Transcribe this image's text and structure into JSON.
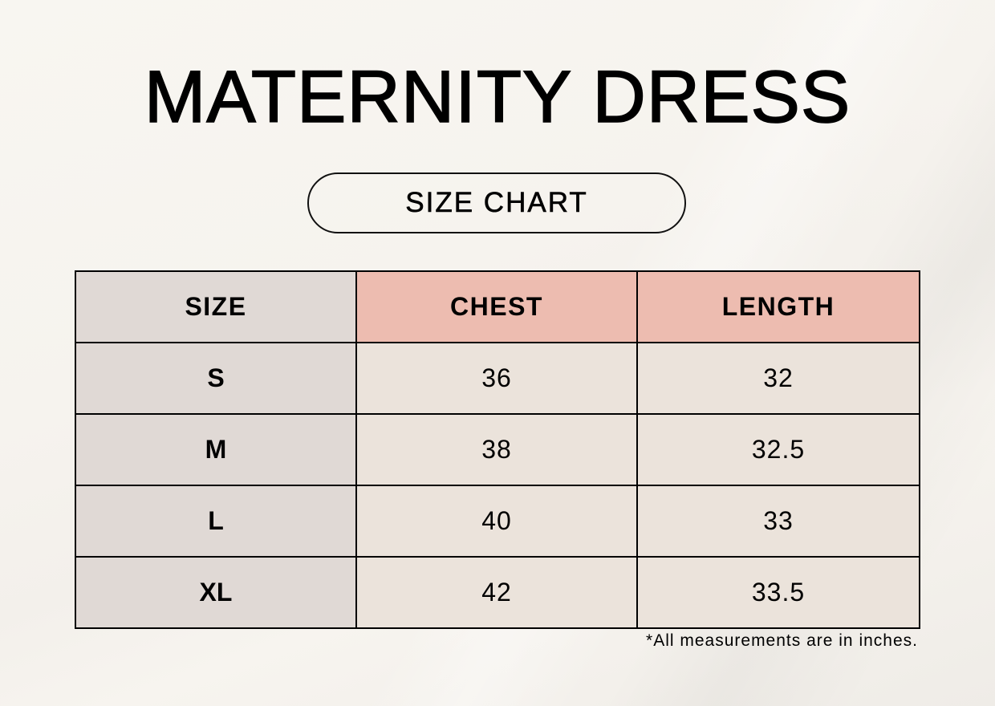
{
  "title": "MATERNITY DRESS",
  "subtitle": "SIZE CHART",
  "table": {
    "headers": [
      "SIZE",
      "CHEST",
      "LENGTH"
    ],
    "rows": [
      {
        "size": "S",
        "chest": "36",
        "length": "32"
      },
      {
        "size": "M",
        "chest": "38",
        "length": "32.5"
      },
      {
        "size": "L",
        "chest": "40",
        "length": "33"
      },
      {
        "size": "XL",
        "chest": "42",
        "length": "33.5"
      }
    ]
  },
  "footnote": "*All measurements are in inches.",
  "colors": {
    "size_column": "#e0d9d5",
    "header_accent": "#edbcb0",
    "value_cells": "#ebe3db",
    "background": "#f6f3ee"
  }
}
